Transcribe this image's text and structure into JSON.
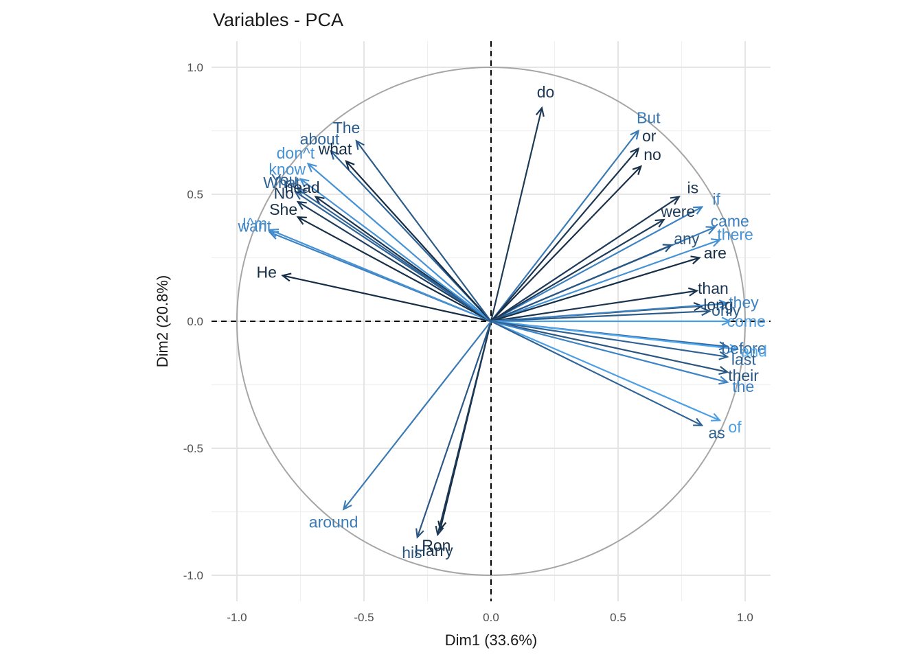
{
  "chart_data": {
    "type": "scatter",
    "title": "Variables - PCA",
    "xlabel": "Dim1 (33.6%)",
    "ylabel": "Dim2 (20.8%)",
    "xlim": [
      -1.0,
      1.0
    ],
    "ylim": [
      -1.0,
      1.0
    ],
    "x_ticks": [
      "-1.0",
      "-0.5",
      "0.0",
      "0.5",
      "1.0"
    ],
    "y_ticks": [
      "1.0",
      "0.5",
      "0.0",
      "-0.5",
      "-1.0"
    ],
    "x_tick_values": [
      -1.0,
      -0.5,
      0.0,
      0.5,
      1.0
    ],
    "y_tick_values": [
      1.0,
      0.5,
      0.0,
      -0.5,
      -1.0
    ],
    "grid": true,
    "unit_circle": true,
    "color_scale": {
      "low": "#132B43",
      "high": "#56B1F7"
    },
    "variables": [
      {
        "name": "do",
        "x": 0.2,
        "y": 0.84,
        "color": "#1d3a57"
      },
      {
        "name": "But",
        "x": 0.58,
        "y": 0.75,
        "color": "#3a7ab5"
      },
      {
        "name": "or",
        "x": 0.58,
        "y": 0.68,
        "color": "#1c3551"
      },
      {
        "name": "no",
        "x": 0.59,
        "y": 0.61,
        "color": "#1a3049"
      },
      {
        "name": "is",
        "x": 0.74,
        "y": 0.49,
        "color": "#1e3a58"
      },
      {
        "name": "if",
        "x": 0.83,
        "y": 0.45,
        "color": "#3d82c2"
      },
      {
        "name": "came",
        "x": 0.88,
        "y": 0.37,
        "color": "#3b7dbb"
      },
      {
        "name": "were",
        "x": 0.68,
        "y": 0.4,
        "color": "#1e3b59"
      },
      {
        "name": "there",
        "x": 0.9,
        "y": 0.32,
        "color": "#4592d4"
      },
      {
        "name": "any",
        "x": 0.71,
        "y": 0.3,
        "color": "#2a5580"
      },
      {
        "name": "are",
        "x": 0.82,
        "y": 0.25,
        "color": "#162e46"
      },
      {
        "name": "than",
        "x": 0.81,
        "y": 0.12,
        "color": "#1b344f"
      },
      {
        "name": "long",
        "x": 0.83,
        "y": 0.06,
        "color": "#1f3d5d"
      },
      {
        "name": "they",
        "x": 0.93,
        "y": 0.07,
        "color": "#3e84c4"
      },
      {
        "name": "only",
        "x": 0.86,
        "y": 0.04,
        "color": "#2c5b88"
      },
      {
        "name": "come",
        "x": 0.94,
        "y": 0.0,
        "color": "#4a9be0"
      },
      {
        "name": "before",
        "x": 0.93,
        "y": -0.1,
        "color": "#326ba1"
      },
      {
        "name": "and",
        "x": 0.97,
        "y": -0.11,
        "color": "#52aaf0"
      },
      {
        "name": "their",
        "x": 0.93,
        "y": -0.2,
        "color": "#2a5680"
      },
      {
        "name": "the",
        "x": 0.93,
        "y": -0.24,
        "color": "#3e84c4"
      },
      {
        "name": "last",
        "x": 0.93,
        "y": -0.14,
        "color": "#2f6396"
      },
      {
        "name": "of",
        "x": 0.9,
        "y": -0.39,
        "color": "#4c9fe5"
      },
      {
        "name": "as",
        "x": 0.83,
        "y": -0.41,
        "color": "#2f6396"
      },
      {
        "name": "Ron",
        "x": -0.2,
        "y": -0.82,
        "color": "#152d45"
      },
      {
        "name": "Harry",
        "x": -0.21,
        "y": -0.84,
        "color": "#1d3a57"
      },
      {
        "name": "his",
        "x": -0.29,
        "y": -0.85,
        "color": "#2b5784"
      },
      {
        "name": "around",
        "x": -0.58,
        "y": -0.74,
        "color": "#3a7ab5"
      },
      {
        "name": "He",
        "x": -0.82,
        "y": 0.18,
        "color": "#152d45"
      },
      {
        "name": "want",
        "x": -0.87,
        "y": 0.35,
        "color": "#3d82c2"
      },
      {
        "name": "I^m",
        "x": -0.87,
        "y": 0.36,
        "color": "#4892d4"
      },
      {
        "name": "She",
        "x": -0.76,
        "y": 0.41,
        "color": "#162e46"
      },
      {
        "name": "No",
        "x": -0.76,
        "y": 0.47,
        "color": "#1f3d5d"
      },
      {
        "name": "What",
        "x": -0.77,
        "y": 0.51,
        "color": "#2f6396"
      },
      {
        "name": "head",
        "x": -0.69,
        "y": 0.49,
        "color": "#1b344f"
      },
      {
        "name": "You",
        "x": -0.76,
        "y": 0.52,
        "color": "#2f6396"
      },
      {
        "name": "know",
        "x": -0.75,
        "y": 0.56,
        "color": "#4592d4"
      },
      {
        "name": "don^t",
        "x": -0.72,
        "y": 0.62,
        "color": "#4592d4"
      },
      {
        "name": "about",
        "x": -0.63,
        "y": 0.67,
        "color": "#2f6396"
      },
      {
        "name": "what",
        "x": -0.57,
        "y": 0.63,
        "color": "#152d45"
      },
      {
        "name": "The",
        "x": -0.53,
        "y": 0.71,
        "color": "#2c5b88"
      }
    ]
  }
}
